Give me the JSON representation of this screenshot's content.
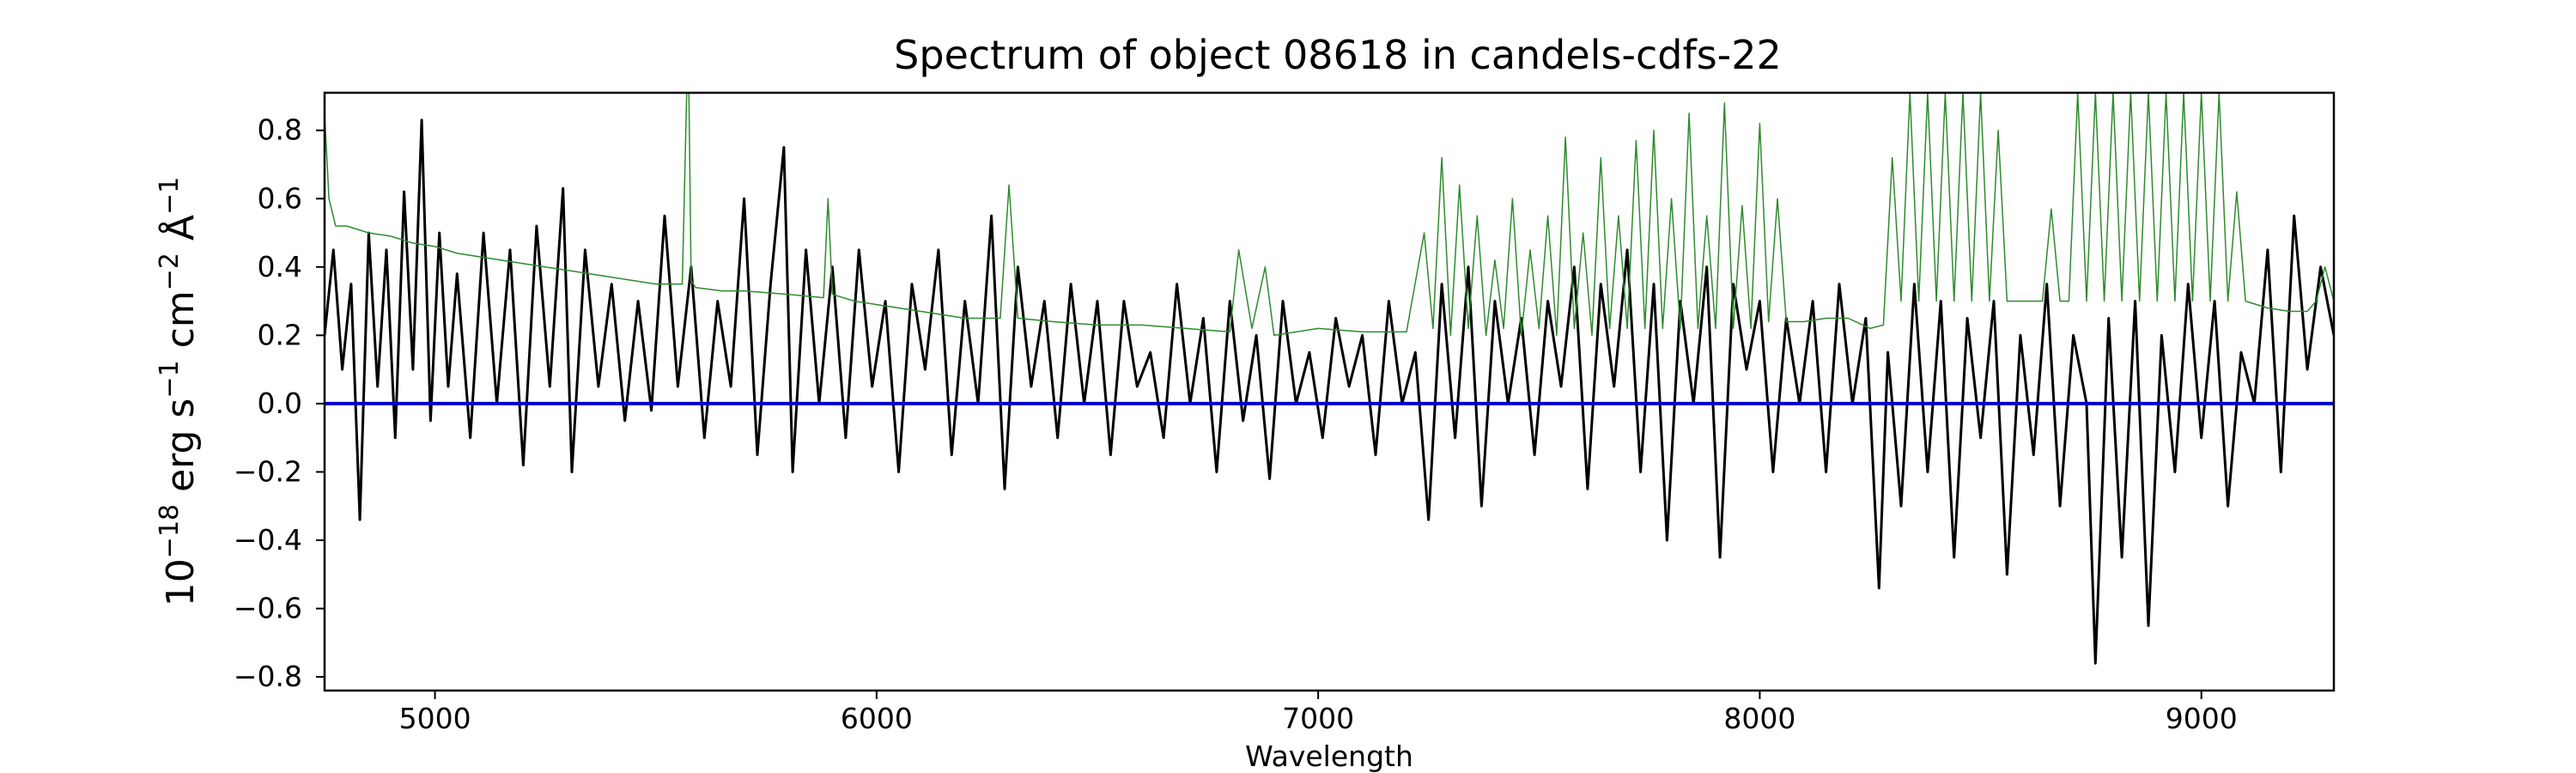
{
  "chart_data": {
    "type": "line",
    "title": "Spectrum of object 08618 in candels-cdfs-22",
    "xlabel": "Wavelength",
    "ylabel": {
      "base": "10",
      "exp1": "−18",
      "unit1": " erg s",
      "exp2": "−1",
      "unit2": " cm",
      "exp3": "−2",
      "unit3": " Å",
      "exp4": "−1"
    },
    "xlim": [
      4750,
      9300
    ],
    "ylim": [
      -0.84,
      0.91
    ],
    "xticks": [
      {
        "value": 5000,
        "label": "5000"
      },
      {
        "value": 6000,
        "label": "6000"
      },
      {
        "value": 7000,
        "label": "7000"
      },
      {
        "value": 8000,
        "label": "8000"
      },
      {
        "value": 9000,
        "label": "9000"
      }
    ],
    "yticks": [
      {
        "value": 0.8,
        "label": "0.8"
      },
      {
        "value": 0.6,
        "label": "0.6"
      },
      {
        "value": 0.4,
        "label": "0.4"
      },
      {
        "value": 0.2,
        "label": "0.2"
      },
      {
        "value": 0.0,
        "label": "0.0"
      },
      {
        "value": -0.2,
        "label": "−0.2"
      },
      {
        "value": -0.4,
        "label": "−0.4"
      },
      {
        "value": -0.6,
        "label": "−0.6"
      },
      {
        "value": -0.8,
        "label": "−0.8"
      }
    ],
    "grid": false,
    "series": [
      {
        "role": "flux",
        "color": "#000000",
        "x": [
          4750,
          4770,
          4790,
          4810,
          4830,
          4850,
          4870,
          4890,
          4910,
          4930,
          4950,
          4970,
          4990,
          5010,
          5030,
          5050,
          5080,
          5110,
          5140,
          5170,
          5200,
          5230,
          5260,
          5290,
          5310,
          5340,
          5370,
          5400,
          5430,
          5460,
          5490,
          5520,
          5550,
          5580,
          5610,
          5640,
          5670,
          5700,
          5730,
          5760,
          5790,
          5810,
          5840,
          5870,
          5900,
          5930,
          5960,
          5990,
          6020,
          6050,
          6080,
          6110,
          6140,
          6170,
          6200,
          6230,
          6260,
          6290,
          6320,
          6350,
          6380,
          6410,
          6440,
          6470,
          6500,
          6530,
          6560,
          6590,
          6620,
          6650,
          6680,
          6710,
          6740,
          6770,
          6800,
          6830,
          6860,
          6890,
          6920,
          6950,
          6980,
          7010,
          7040,
          7070,
          7100,
          7130,
          7160,
          7190,
          7220,
          7250,
          7280,
          7310,
          7340,
          7370,
          7400,
          7430,
          7460,
          7490,
          7520,
          7550,
          7580,
          7610,
          7640,
          7670,
          7700,
          7730,
          7760,
          7790,
          7820,
          7850,
          7880,
          7910,
          7940,
          7970,
          8000,
          8030,
          8060,
          8090,
          8120,
          8150,
          8180,
          8210,
          8240,
          8270,
          8290,
          8320,
          8350,
          8380,
          8410,
          8440,
          8470,
          8500,
          8530,
          8560,
          8590,
          8620,
          8650,
          8680,
          8710,
          8740,
          8760,
          8790,
          8820,
          8850,
          8880,
          8910,
          8940,
          8970,
          9000,
          9030,
          9060,
          9090,
          9120,
          9150,
          9180,
          9210,
          9240,
          9270,
          9300
        ],
        "y": [
          0.2,
          0.45,
          0.1,
          0.35,
          -0.34,
          0.5,
          0.05,
          0.45,
          -0.1,
          0.62,
          0.1,
          0.83,
          -0.05,
          0.5,
          0.05,
          0.38,
          -0.1,
          0.5,
          0.0,
          0.45,
          -0.18,
          0.52,
          0.05,
          0.63,
          -0.2,
          0.45,
          0.05,
          0.35,
          -0.05,
          0.3,
          -0.02,
          0.55,
          0.05,
          0.4,
          -0.1,
          0.3,
          0.05,
          0.6,
          -0.15,
          0.35,
          0.75,
          -0.2,
          0.45,
          0.0,
          0.4,
          -0.1,
          0.45,
          0.05,
          0.3,
          -0.2,
          0.35,
          0.1,
          0.45,
          -0.15,
          0.3,
          0.0,
          0.55,
          -0.25,
          0.4,
          0.05,
          0.3,
          -0.1,
          0.35,
          0.0,
          0.3,
          -0.15,
          0.3,
          0.05,
          0.15,
          -0.1,
          0.35,
          0.0,
          0.25,
          -0.2,
          0.3,
          -0.05,
          0.2,
          -0.22,
          0.3,
          0.0,
          0.15,
          -0.1,
          0.25,
          0.05,
          0.2,
          -0.15,
          0.3,
          0.0,
          0.15,
          -0.34,
          0.35,
          -0.1,
          0.4,
          -0.3,
          0.3,
          0.0,
          0.25,
          -0.15,
          0.3,
          0.05,
          0.4,
          -0.25,
          0.35,
          0.05,
          0.45,
          -0.2,
          0.35,
          -0.4,
          0.3,
          0.0,
          0.4,
          -0.45,
          0.35,
          0.1,
          0.3,
          -0.2,
          0.25,
          0.0,
          0.3,
          -0.2,
          0.35,
          0.0,
          0.25,
          -0.54,
          0.15,
          -0.3,
          0.35,
          -0.2,
          0.3,
          -0.45,
          0.25,
          -0.1,
          0.3,
          -0.5,
          0.2,
          -0.15,
          0.35,
          -0.3,
          0.2,
          0.0,
          -0.76,
          0.25,
          -0.45,
          0.3,
          -0.65,
          0.2,
          -0.2,
          0.35,
          -0.1,
          0.3,
          -0.3,
          0.15,
          0.0,
          0.45,
          -0.2,
          0.55,
          0.1,
          0.4,
          0.2
        ]
      },
      {
        "role": "error",
        "color": "#2e8b2e",
        "x": [
          4750,
          4760,
          4775,
          4800,
          4850,
          4900,
          4950,
          5000,
          5050,
          5100,
          5200,
          5300,
          5400,
          5500,
          5560,
          5570,
          5575,
          5580,
          5590,
          5650,
          5700,
          5800,
          5880,
          5890,
          5900,
          5950,
          6000,
          6100,
          6200,
          6280,
          6300,
          6320,
          6400,
          6500,
          6600,
          6700,
          6800,
          6820,
          6850,
          6880,
          6900,
          7000,
          7100,
          7200,
          7240,
          7260,
          7280,
          7300,
          7320,
          7340,
          7360,
          7380,
          7400,
          7420,
          7440,
          7460,
          7480,
          7500,
          7520,
          7540,
          7560,
          7580,
          7600,
          7620,
          7640,
          7660,
          7680,
          7700,
          7720,
          7740,
          7760,
          7780,
          7800,
          7820,
          7840,
          7860,
          7880,
          7900,
          7920,
          7940,
          7960,
          7980,
          8000,
          8020,
          8040,
          8060,
          8100,
          8150,
          8200,
          8250,
          8280,
          8300,
          8320,
          8340,
          8360,
          8380,
          8400,
          8420,
          8440,
          8460,
          8480,
          8500,
          8520,
          8540,
          8560,
          8600,
          8640,
          8660,
          8680,
          8700,
          8720,
          8740,
          8760,
          8780,
          8800,
          8820,
          8840,
          8860,
          8880,
          8900,
          8920,
          8940,
          8960,
          8980,
          9000,
          9020,
          9040,
          9060,
          9080,
          9100,
          9150,
          9200,
          9240,
          9260,
          9280,
          9300
        ],
        "y": [
          0.85,
          0.6,
          0.52,
          0.52,
          0.5,
          0.49,
          0.47,
          0.46,
          0.44,
          0.43,
          0.41,
          0.39,
          0.37,
          0.35,
          0.35,
          0.91,
          0.91,
          0.36,
          0.34,
          0.33,
          0.33,
          0.32,
          0.31,
          0.6,
          0.32,
          0.3,
          0.29,
          0.27,
          0.25,
          0.25,
          0.64,
          0.25,
          0.24,
          0.23,
          0.23,
          0.22,
          0.21,
          0.45,
          0.22,
          0.4,
          0.2,
          0.22,
          0.21,
          0.21,
          0.5,
          0.22,
          0.72,
          0.2,
          0.64,
          0.22,
          0.55,
          0.2,
          0.42,
          0.22,
          0.6,
          0.2,
          0.45,
          0.22,
          0.55,
          0.2,
          0.78,
          0.22,
          0.5,
          0.2,
          0.72,
          0.22,
          0.55,
          0.22,
          0.77,
          0.22,
          0.8,
          0.22,
          0.6,
          0.22,
          0.85,
          0.22,
          0.55,
          0.22,
          0.88,
          0.22,
          0.58,
          0.22,
          0.82,
          0.24,
          0.6,
          0.24,
          0.24,
          0.25,
          0.25,
          0.22,
          0.23,
          0.72,
          0.3,
          0.91,
          0.3,
          0.91,
          0.3,
          0.91,
          0.3,
          0.91,
          0.3,
          0.91,
          0.3,
          0.8,
          0.3,
          0.3,
          0.3,
          0.57,
          0.3,
          0.3,
          0.91,
          0.3,
          0.91,
          0.3,
          0.91,
          0.3,
          0.91,
          0.3,
          0.91,
          0.3,
          0.91,
          0.3,
          0.91,
          0.3,
          0.91,
          0.3,
          0.91,
          0.3,
          0.62,
          0.3,
          0.28,
          0.27,
          0.27,
          0.3,
          0.4,
          0.3
        ]
      },
      {
        "role": "zero",
        "color": "#0000cc",
        "x": [
          4750,
          9300
        ],
        "y": [
          0,
          0
        ]
      }
    ]
  }
}
